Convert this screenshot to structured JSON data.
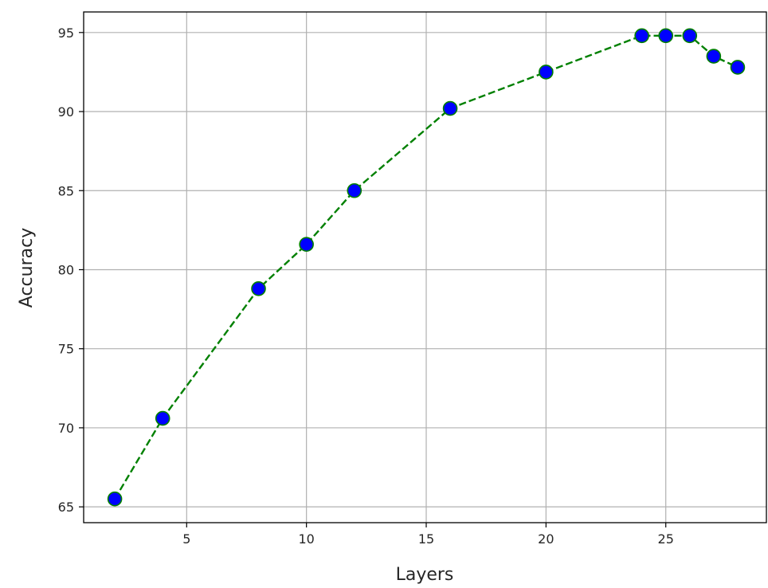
{
  "chart_data": {
    "type": "line",
    "title": "",
    "xlabel": "Layers",
    "ylabel": "Accuracy",
    "xlim": [
      0.7,
      29.2
    ],
    "ylim": [
      64.0,
      96.3
    ],
    "xticks": [
      5,
      10,
      15,
      20,
      25
    ],
    "yticks": [
      65,
      70,
      75,
      80,
      85,
      90,
      95
    ],
    "grid": true,
    "legend": "none",
    "series": [
      {
        "x": [
          2,
          4,
          8,
          10,
          12,
          16,
          20,
          24,
          25,
          26,
          27,
          28
        ],
        "y": [
          65.5,
          70.6,
          78.8,
          81.6,
          85.0,
          90.2,
          92.5,
          94.8,
          94.8,
          94.8,
          93.5,
          92.8
        ],
        "line_style": "dashed",
        "line_color": "#008000",
        "marker": "circle",
        "marker_face_color": "#0000ff",
        "marker_edge_color": "#008000"
      }
    ]
  }
}
